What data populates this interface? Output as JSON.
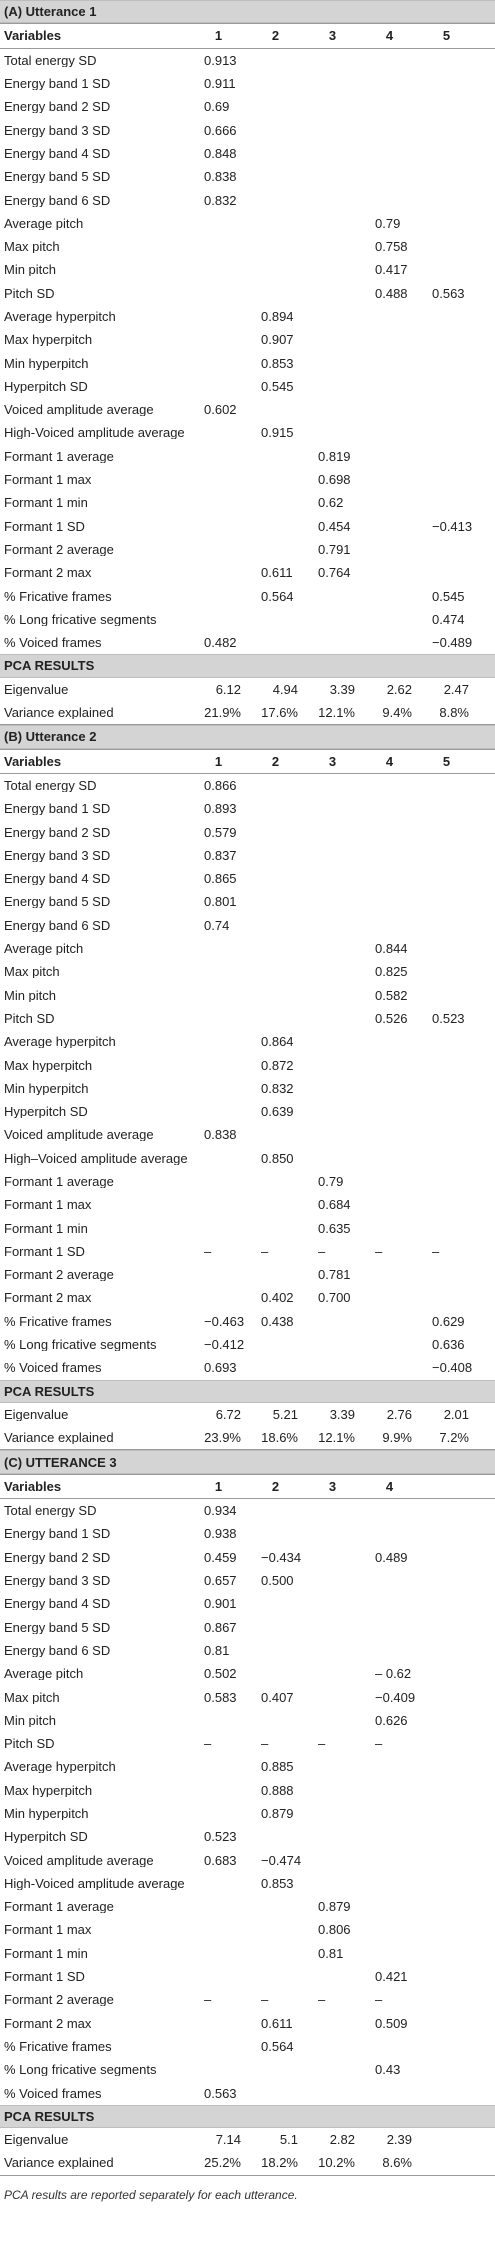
{
  "sections": [
    {
      "title": "(A) Utterance 1",
      "header": [
        "Variables",
        "1",
        "2",
        "3",
        "4",
        "5"
      ],
      "rows": [
        [
          "Total energy SD",
          "0.913",
          "",
          "",
          "",
          ""
        ],
        [
          "Energy band 1 SD",
          "0.911",
          "",
          "",
          "",
          ""
        ],
        [
          "Energy band 2 SD",
          "0.69",
          "",
          "",
          "",
          ""
        ],
        [
          "Energy band 3 SD",
          "0.666",
          "",
          "",
          "",
          ""
        ],
        [
          "Energy band 4 SD",
          "0.848",
          "",
          "",
          "",
          ""
        ],
        [
          "Energy band 5 SD",
          "0.838",
          "",
          "",
          "",
          ""
        ],
        [
          "Energy band 6 SD",
          "0.832",
          "",
          "",
          "",
          ""
        ],
        [
          "Average pitch",
          "",
          "",
          "",
          "0.79",
          ""
        ],
        [
          "Max pitch",
          "",
          "",
          "",
          "0.758",
          ""
        ],
        [
          "Min pitch",
          "",
          "",
          "",
          "0.417",
          ""
        ],
        [
          "Pitch SD",
          "",
          "",
          "",
          "0.488",
          "0.563"
        ],
        [
          "Average hyperpitch",
          "",
          "0.894",
          "",
          "",
          ""
        ],
        [
          "Max hyperpitch",
          "",
          "0.907",
          "",
          "",
          ""
        ],
        [
          "Min hyperpitch",
          "",
          "0.853",
          "",
          "",
          ""
        ],
        [
          "Hyperpitch SD",
          "",
          "0.545",
          "",
          "",
          ""
        ],
        [
          "Voiced amplitude average",
          "0.602",
          "",
          "",
          "",
          ""
        ],
        [
          "High-Voiced amplitude average",
          "",
          "0.915",
          "",
          "",
          ""
        ],
        [
          "Formant 1 average",
          "",
          "",
          "0.819",
          "",
          ""
        ],
        [
          "Formant 1 max",
          "",
          "",
          "0.698",
          "",
          ""
        ],
        [
          "Formant 1 min",
          "",
          "",
          "0.62",
          "",
          ""
        ],
        [
          "Formant 1 SD",
          "",
          "",
          "0.454",
          "",
          "−0.413"
        ],
        [
          "Formant 2 average",
          "",
          "",
          "0.791",
          "",
          ""
        ],
        [
          "Formant 2 max",
          "",
          "0.611",
          "0.764",
          "",
          ""
        ],
        [
          "% Fricative frames",
          "",
          "0.564",
          "",
          "",
          "0.545"
        ],
        [
          "% Long fricative segments",
          "",
          "",
          "",
          "",
          "0.474"
        ],
        [
          "% Voiced frames",
          "0.482",
          "",
          "",
          "",
          "−0.489"
        ]
      ],
      "pca_title": "PCA RESULTS",
      "eigen": [
        "Eigenvalue",
        "6.12",
        "4.94",
        "3.39",
        "2.62",
        "2.47"
      ],
      "variance": [
        "Variance explained",
        "21.9%",
        "17.6%",
        "12.1%",
        "9.4%",
        "8.8%"
      ]
    },
    {
      "title": "(B) Utterance 2",
      "header": [
        "Variables",
        "1",
        "2",
        "3",
        "4",
        "5"
      ],
      "rows": [
        [
          "Total energy SD",
          "0.866",
          "",
          "",
          "",
          ""
        ],
        [
          "Energy band 1 SD",
          "0.893",
          "",
          "",
          "",
          ""
        ],
        [
          "Energy band 2 SD",
          "0.579",
          "",
          "",
          "",
          ""
        ],
        [
          "Energy band 3 SD",
          "0.837",
          "",
          "",
          "",
          ""
        ],
        [
          "Energy band 4 SD",
          "0.865",
          "",
          "",
          "",
          ""
        ],
        [
          "Energy band 5 SD",
          "0.801",
          "",
          "",
          "",
          ""
        ],
        [
          "Energy band 6 SD",
          "0.74",
          "",
          "",
          "",
          ""
        ],
        [
          "Average pitch",
          "",
          "",
          "",
          "0.844",
          ""
        ],
        [
          "Max pitch",
          "",
          "",
          "",
          "0.825",
          ""
        ],
        [
          "Min pitch",
          "",
          "",
          "",
          "0.582",
          ""
        ],
        [
          "Pitch SD",
          "",
          "",
          "",
          "0.526",
          "0.523"
        ],
        [
          "Average hyperpitch",
          "",
          "0.864",
          "",
          "",
          ""
        ],
        [
          "Max hyperpitch",
          "",
          "0.872",
          "",
          "",
          ""
        ],
        [
          "Min hyperpitch",
          "",
          "0.832",
          "",
          "",
          ""
        ],
        [
          "Hyperpitch SD",
          "",
          "0.639",
          "",
          "",
          ""
        ],
        [
          "Voiced amplitude average",
          "0.838",
          "",
          "",
          "",
          ""
        ],
        [
          "High–Voiced amplitude average",
          "",
          "0.850",
          "",
          "",
          ""
        ],
        [
          "Formant 1 average",
          "",
          "",
          "0.79",
          "",
          ""
        ],
        [
          "Formant 1 max",
          "",
          "",
          "0.684",
          "",
          ""
        ],
        [
          "Formant 1 min",
          "",
          "",
          "0.635",
          "",
          ""
        ],
        [
          "Formant 1 SD",
          "–",
          "–",
          "–",
          "–",
          "–"
        ],
        [
          "Formant 2 average",
          "",
          "",
          "0.781",
          "",
          ""
        ],
        [
          "Formant 2 max",
          "",
          "0.402",
          "0.700",
          "",
          ""
        ],
        [
          "% Fricative frames",
          "−0.463",
          "0.438",
          "",
          "",
          "0.629"
        ],
        [
          "% Long fricative segments",
          "−0.412",
          "",
          "",
          "",
          "0.636"
        ],
        [
          "% Voiced frames",
          "0.693",
          "",
          "",
          "",
          "−0.408"
        ]
      ],
      "pca_title": "PCA RESULTS",
      "eigen": [
        "Eigenvalue",
        "6.72",
        "5.21",
        "3.39",
        "2.76",
        "2.01"
      ],
      "variance": [
        "Variance explained",
        "23.9%",
        "18.6%",
        "12.1%",
        "9.9%",
        "7.2%"
      ]
    },
    {
      "title": "(C) UTTERANCE 3",
      "header": [
        "Variables",
        "1",
        "2",
        "3",
        "4",
        ""
      ],
      "rows": [
        [
          "Total energy SD",
          "0.934",
          "",
          "",
          "",
          ""
        ],
        [
          "Energy band 1 SD",
          "0.938",
          "",
          "",
          "",
          ""
        ],
        [
          "Energy band 2 SD",
          "0.459",
          "−0.434",
          "",
          "0.489",
          ""
        ],
        [
          "Energy band 3 SD",
          "0.657",
          "0.500",
          "",
          "",
          ""
        ],
        [
          "Energy band 4 SD",
          "0.901",
          "",
          "",
          "",
          ""
        ],
        [
          "Energy band 5 SD",
          "0.867",
          "",
          "",
          "",
          ""
        ],
        [
          "Energy band 6 SD",
          "0.81",
          "",
          "",
          "",
          ""
        ],
        [
          "Average pitch",
          "0.502",
          "",
          "",
          "– 0.62",
          ""
        ],
        [
          "Max pitch",
          "0.583",
          "0.407",
          "",
          "−0.409",
          ""
        ],
        [
          "Min pitch",
          "",
          "",
          "",
          "0.626",
          ""
        ],
        [
          "Pitch SD",
          "–",
          "–",
          "–",
          "–",
          ""
        ],
        [
          "Average hyperpitch",
          "",
          "0.885",
          "",
          "",
          ""
        ],
        [
          "Max hyperpitch",
          "",
          "0.888",
          "",
          "",
          ""
        ],
        [
          "Min hyperpitch",
          "",
          "0.879",
          "",
          "",
          ""
        ],
        [
          "Hyperpitch SD",
          "0.523",
          "",
          "",
          "",
          ""
        ],
        [
          "Voiced amplitude average",
          "0.683",
          "−0.474",
          "",
          "",
          ""
        ],
        [
          "High-Voiced amplitude average",
          "",
          "0.853",
          "",
          "",
          ""
        ],
        [
          "Formant 1 average",
          "",
          "",
          "0.879",
          "",
          ""
        ],
        [
          "Formant 1 max",
          "",
          "",
          "0.806",
          "",
          ""
        ],
        [
          "Formant 1 min",
          "",
          "",
          "0.81",
          "",
          ""
        ],
        [
          "Formant 1 SD",
          "",
          "",
          "",
          "0.421",
          ""
        ],
        [
          "Formant 2 average",
          "–",
          "–",
          "–",
          "–",
          ""
        ],
        [
          "Formant 2 max",
          "",
          "0.611",
          "",
          "0.509",
          ""
        ],
        [
          "% Fricative frames",
          "",
          "0.564",
          "",
          "",
          ""
        ],
        [
          "% Long fricative segments",
          "",
          "",
          "",
          "0.43",
          ""
        ],
        [
          "% Voiced frames",
          "0.563",
          "",
          "",
          "",
          ""
        ]
      ],
      "pca_title": "PCA RESULTS",
      "eigen": [
        "Eigenvalue",
        "7.14",
        "5.1",
        "2.82",
        "2.39",
        ""
      ],
      "variance": [
        "Variance explained",
        "25.2%",
        "18.2%",
        "10.2%",
        "8.6%",
        ""
      ]
    }
  ],
  "footnote": "PCA results are reported separately for each utterance."
}
